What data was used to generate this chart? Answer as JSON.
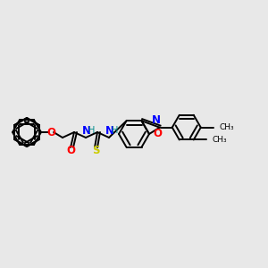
{
  "background_color": "#e8e8e8",
  "bond_color": "#000000",
  "atom_colors": {
    "O": "#ff0000",
    "N": "#0000ff",
    "S": "#cccc00",
    "C": "#000000",
    "H": "#008b8b"
  },
  "figsize": [
    3.0,
    3.0
  ],
  "dpi": 100,
  "lw": 1.4,
  "font_size": 8.5
}
